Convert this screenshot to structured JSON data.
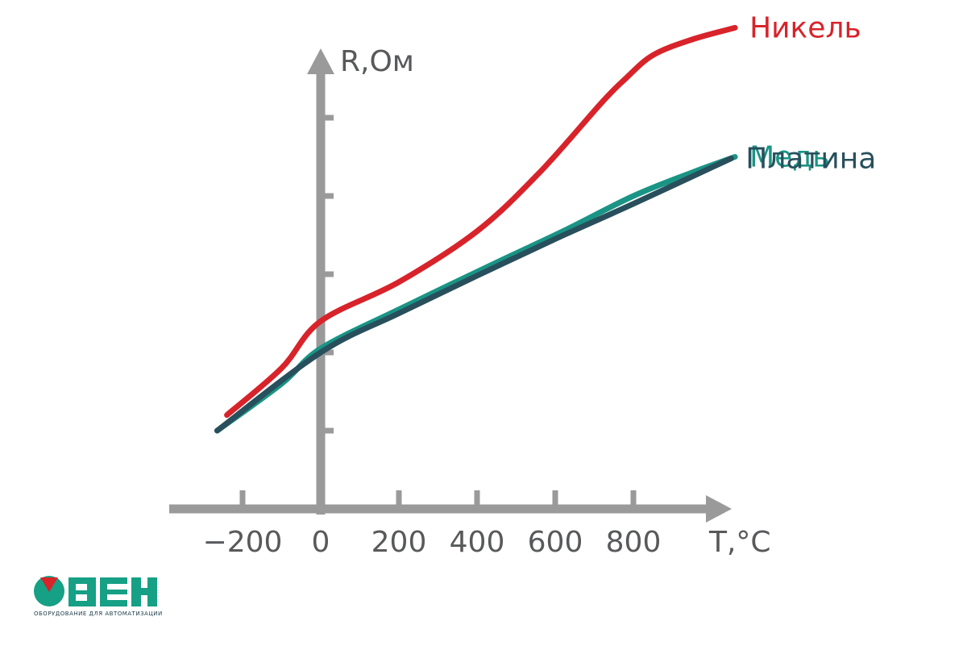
{
  "chart_data": {
    "type": "line",
    "ylabel": "R,Ом",
    "xlabel": "T,°C",
    "x_ticks": [
      -200,
      0,
      200,
      400,
      600,
      800
    ],
    "x_tick_labels": [
      "−200",
      "0",
      "200",
      "400",
      "600",
      "800"
    ],
    "xlim": [
      -400,
      1050
    ],
    "ylim": [
      0,
      6
    ],
    "y_ticks": [
      1,
      2,
      3,
      4,
      5
    ],
    "grid": false,
    "legend_placement": "right (labels at line ends)",
    "series": [
      {
        "name": "Никель",
        "color": "#d8232a",
        "points": [
          [
            -240,
            1.2
          ],
          [
            -100,
            1.8
          ],
          [
            0,
            2.4
          ],
          [
            200,
            2.9
          ],
          [
            400,
            3.55
          ],
          [
            560,
            4.3
          ],
          [
            720,
            5.2
          ],
          [
            780,
            5.5
          ],
          [
            850,
            5.8
          ],
          [
            950,
            6.0
          ],
          [
            1060,
            6.15
          ]
        ]
      },
      {
        "name": "Медь",
        "color": "#1a9485",
        "points": [
          [
            -265,
            1.0
          ],
          [
            -100,
            1.6
          ],
          [
            0,
            2.05
          ],
          [
            200,
            2.55
          ],
          [
            450,
            3.15
          ],
          [
            620,
            3.55
          ],
          [
            800,
            4.0
          ],
          [
            950,
            4.3
          ],
          [
            1060,
            4.5
          ]
        ]
      },
      {
        "name": "Платина",
        "color": "#284f5c",
        "points": [
          [
            -265,
            1.0
          ],
          [
            0,
            2.0
          ],
          [
            200,
            2.5
          ],
          [
            400,
            2.98
          ],
          [
            600,
            3.45
          ],
          [
            800,
            3.9
          ],
          [
            1050,
            4.48
          ]
        ]
      }
    ]
  },
  "logo": {
    "name": "ОВЕН",
    "tagline": "ОБОРУДОВАНИЕ ДЛЯ АВТОМАТИЗАЦИИ",
    "colors": {
      "green": "#16a085",
      "red": "#d8232a"
    }
  }
}
